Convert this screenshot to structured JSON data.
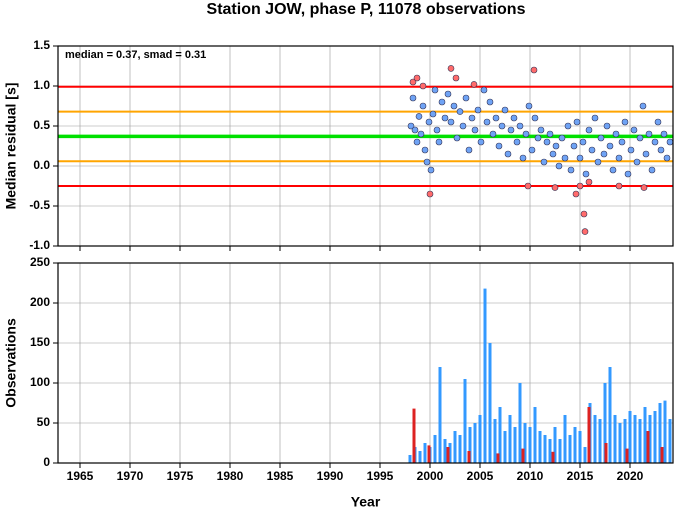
{
  "chart_data": [
    {
      "type": "scatter",
      "title": "Station JOW, phase P, 11078 observations",
      "annotation": "median = 0.37, smad = 0.31",
      "ylabel": "Median residual [s]",
      "xlim": [
        1962.8,
        2024.3
      ],
      "ylim": [
        -1.0,
        1.5
      ],
      "xticks": [
        1965,
        1970,
        1975,
        1980,
        1985,
        1990,
        1995,
        2000,
        2005,
        2010,
        2015,
        2020
      ],
      "x_tick_labels": false,
      "yticks": [
        {
          "value": -1,
          "label": "-1.0"
        },
        -0.5,
        {
          "value": 0,
          "label": "0.0"
        },
        0.5,
        {
          "value": 1,
          "label": "1.0"
        },
        1.5
      ],
      "grid": true,
      "hlines": [
        {
          "value": 0.99,
          "color": "#ff0000"
        },
        {
          "value": 0.68,
          "color": "#ffa500"
        },
        {
          "value": 0.37,
          "color": "#00e000"
        },
        {
          "value": 0.06,
          "color": "#ffa500"
        },
        {
          "value": -0.25,
          "color": "#ff0000"
        }
      ],
      "series": [
        {
          "color": "#6fa3f5",
          "x": [
            1998.1,
            1998.3,
            1998.5,
            1998.7,
            1998.9,
            1999.1,
            1999.3,
            1999.5,
            1999.7,
            1999.9,
            2000.1,
            2000.3,
            2000.5,
            2000.7,
            2000.9,
            2001.2,
            2001.5,
            2001.8,
            2002.1,
            2002.4,
            2002.7,
            2003.0,
            2003.3,
            2003.6,
            2003.9,
            2004.2,
            2004.5,
            2004.8,
            2005.1,
            2005.4,
            2005.7,
            2006.0,
            2006.3,
            2006.6,
            2006.9,
            2007.2,
            2007.5,
            2007.8,
            2008.1,
            2008.4,
            2008.7,
            2009.0,
            2009.3,
            2009.6,
            2009.9,
            2010.2,
            2010.5,
            2010.8,
            2011.1,
            2011.4,
            2011.7,
            2012.0,
            2012.3,
            2012.6,
            2012.9,
            2013.2,
            2013.5,
            2013.8,
            2014.1,
            2014.4,
            2014.7,
            2015.0,
            2015.3,
            2015.6,
            2015.9,
            2016.2,
            2016.5,
            2016.8,
            2017.1,
            2017.4,
            2017.7,
            2018.0,
            2018.3,
            2018.6,
            2018.9,
            2019.2,
            2019.5,
            2019.8,
            2020.1,
            2020.4,
            2020.7,
            2021.0,
            2021.3,
            2021.6,
            2021.9,
            2022.2,
            2022.5,
            2022.8,
            2023.1,
            2023.4,
            2023.7,
            2024.0
          ],
          "values": [
            0.5,
            0.85,
            0.45,
            0.3,
            0.62,
            0.4,
            0.75,
            0.2,
            0.05,
            0.55,
            -0.05,
            0.65,
            0.95,
            0.45,
            0.3,
            0.8,
            0.6,
            0.9,
            0.55,
            0.75,
            0.35,
            0.68,
            0.5,
            0.85,
            0.2,
            0.6,
            0.45,
            0.7,
            0.3,
            0.95,
            0.55,
            0.8,
            0.4,
            0.6,
            0.25,
            0.5,
            0.7,
            0.15,
            0.45,
            0.6,
            0.3,
            0.5,
            0.1,
            0.4,
            0.75,
            0.2,
            0.6,
            0.35,
            0.45,
            0.05,
            0.3,
            0.4,
            0.15,
            0.25,
            0.0,
            0.35,
            0.1,
            0.5,
            -0.05,
            0.25,
            0.55,
            0.1,
            0.3,
            -0.1,
            0.45,
            0.2,
            0.6,
            0.05,
            0.35,
            0.15,
            0.5,
            0.25,
            -0.05,
            0.4,
            0.1,
            0.3,
            0.55,
            -0.1,
            0.2,
            0.45,
            0.05,
            0.35,
            0.75,
            0.15,
            0.4,
            -0.05,
            0.3,
            0.55,
            0.2,
            0.4,
            0.1,
            0.3
          ]
        },
        {
          "color": "#ff6b6b",
          "x": [
            1998.3,
            1998.7,
            1999.3,
            2000.0,
            2002.1,
            2002.6,
            2004.4,
            2010.4,
            2009.8,
            2012.5,
            2014.6,
            2015.0,
            2015.4,
            2015.5,
            2015.9,
            2018.9,
            2021.4
          ],
          "values": [
            1.05,
            1.1,
            1.0,
            -0.35,
            1.22,
            1.1,
            1.02,
            1.2,
            -0.25,
            -0.27,
            -0.35,
            -0.25,
            -0.6,
            -0.82,
            -0.2,
            -0.25,
            -0.27
          ]
        }
      ]
    },
    {
      "type": "bar",
      "ylabel": "Observations",
      "xlabel": "Year",
      "xlim": [
        1962.8,
        2024.3
      ],
      "ylim": [
        0,
        250
      ],
      "xticks": [
        1965,
        1970,
        1975,
        1980,
        1985,
        1990,
        1995,
        2000,
        2005,
        2010,
        2015,
        2020
      ],
      "x_tick_labels": true,
      "yticks": [
        0,
        50,
        100,
        150,
        200,
        250
      ],
      "grid": true,
      "series": [
        {
          "color": "#3399ff",
          "x": [
            1998.0,
            1998.5,
            1999.0,
            1999.5,
            2000.0,
            2000.5,
            2001.0,
            2001.5,
            2002.0,
            2002.5,
            2003.0,
            2003.5,
            2004.0,
            2004.5,
            2005.0,
            2005.5,
            2006.0,
            2006.5,
            2007.0,
            2007.5,
            2008.0,
            2008.5,
            2009.0,
            2009.5,
            2010.0,
            2010.5,
            2011.0,
            2011.5,
            2012.0,
            2012.5,
            2013.0,
            2013.5,
            2014.0,
            2014.5,
            2015.0,
            2015.5,
            2016.0,
            2016.5,
            2017.0,
            2017.5,
            2018.0,
            2018.5,
            2019.0,
            2019.5,
            2020.0,
            2020.5,
            2021.0,
            2021.5,
            2022.0,
            2022.5,
            2023.0,
            2023.5,
            2024.0
          ],
          "values": [
            10,
            20,
            15,
            25,
            20,
            35,
            120,
            30,
            25,
            40,
            35,
            105,
            45,
            50,
            60,
            218,
            150,
            55,
            70,
            40,
            60,
            45,
            100,
            50,
            45,
            70,
            40,
            35,
            30,
            45,
            30,
            60,
            35,
            45,
            40,
            20,
            75,
            60,
            55,
            100,
            120,
            60,
            50,
            55,
            65,
            60,
            55,
            70,
            60,
            65,
            75,
            78,
            55
          ]
        },
        {
          "color": "#dd2222",
          "x": [
            1998.4,
            1999.9,
            2001.8,
            2003.9,
            2006.8,
            2009.3,
            2012.3,
            2015.9,
            2017.6,
            2019.7,
            2021.8,
            2023.2
          ],
          "values": [
            68,
            22,
            20,
            15,
            12,
            18,
            14,
            70,
            25,
            18,
            40,
            20
          ]
        }
      ]
    }
  ]
}
